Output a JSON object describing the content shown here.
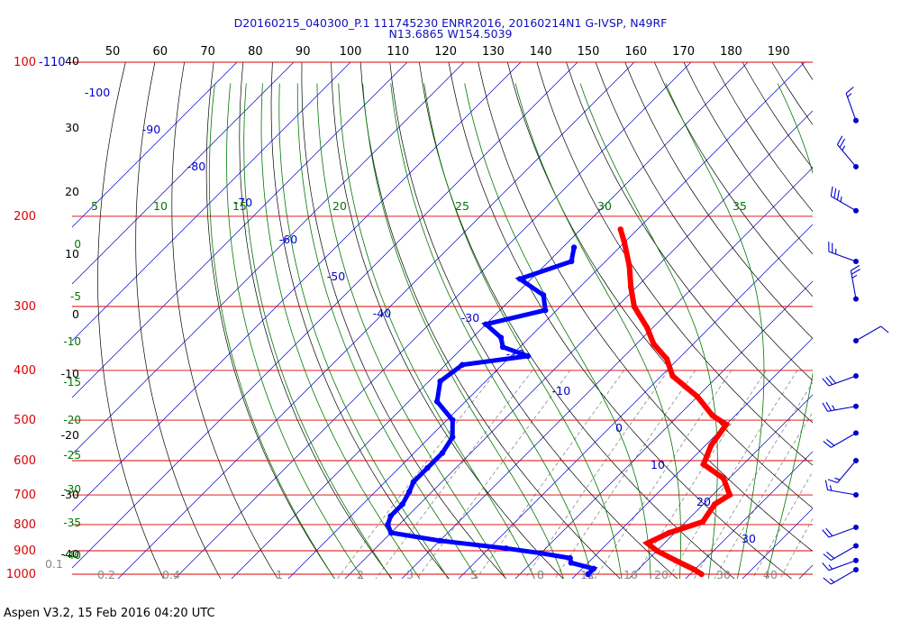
{
  "header": {
    "line1": "D20160215_040300_P.1 111745230 ENRR2016, 20160214N1 G-IVSP, N49RF",
    "line2": "N13.6865 W154.5039"
  },
  "footer": {
    "text": "Aspen V3.2, 15 Feb 2016  04:20 UTC"
  },
  "colors": {
    "isobar": "#dd0000",
    "isotherm": "#0000cc",
    "dry_adiabat": "#000000",
    "moist_adiabat": "#007700",
    "mixing_ratio": "#888888",
    "temperature": "#ff0000",
    "dewpoint": "#0000ff"
  },
  "chart_data": {
    "type": "skew-t",
    "pressure_axis": {
      "ticks": [
        100,
        200,
        300,
        400,
        500,
        600,
        700,
        800,
        900,
        1000
      ],
      "range": [
        100,
        1000
      ],
      "scale": "log"
    },
    "top_theta_labels": [
      50,
      60,
      70,
      80,
      90,
      100,
      110,
      120,
      130,
      140,
      150,
      160,
      170,
      180,
      190
    ],
    "top_left_labels": [
      "-110"
    ],
    "altitude_labels": [
      "40",
      "30",
      "20",
      "10",
      "0",
      "-10",
      "-20",
      "-30",
      "-40"
    ],
    "isotherm_labels": [
      "-100",
      "-90",
      "-80",
      "-70",
      "-60",
      "-50",
      "-40",
      "-30",
      "-20",
      "-10",
      "0",
      "10",
      "20",
      "30"
    ],
    "moist_adiabat_labels": [
      "5",
      "10",
      "15",
      "20",
      "25",
      "30",
      "35"
    ],
    "moist_left_labels": [
      "0",
      "-5",
      "-10",
      "-15",
      "-20",
      "-25",
      "-30",
      "-35",
      "-40"
    ],
    "mixing_ratio_labels": [
      "0.1",
      "0.2",
      "0.4",
      "1",
      "2",
      "3",
      "5",
      "8",
      "12",
      "16",
      "20",
      "30",
      "40"
    ],
    "temperature": {
      "p": [
        212,
        225,
        250,
        275,
        300,
        330,
        355,
        380,
        410,
        450,
        490,
        510,
        560,
        610,
        650,
        700,
        730,
        790,
        830,
        870,
        900,
        940,
        980,
        1000
      ],
      "t": [
        -53,
        -50,
        -45,
        -41,
        -37,
        -31,
        -27,
        -22,
        -18,
        -10,
        -4,
        0,
        1,
        3,
        9,
        13,
        12,
        13,
        9,
        7,
        10,
        15,
        20,
        22
      ]
    },
    "dewpoint": {
      "p": [
        230,
        245,
        265,
        285,
        305,
        325,
        345,
        360,
        375,
        390,
        420,
        460,
        500,
        540,
        580,
        620,
        660,
        690,
        730,
        770,
        800,
        830,
        860,
        890,
        910,
        930,
        950,
        975,
        1000
      ],
      "td": [
        -58,
        -56,
        -62,
        -55,
        -52,
        -60,
        -55,
        -53,
        -47,
        -57,
        -58,
        -55,
        -49,
        -46,
        -45,
        -45,
        -45,
        -44,
        -43,
        -43,
        -42,
        -40,
        -30,
        -17,
        -10,
        -4,
        -3,
        2,
        2
      ]
    },
    "wind_barbs": {
      "p": [
        130,
        160,
        195,
        245,
        290,
        350,
        410,
        470,
        530,
        600,
        700,
        810,
        880,
        940,
        980
      ],
      "direction_deg": [
        340,
        320,
        300,
        290,
        350,
        60,
        250,
        260,
        240,
        220,
        280,
        250,
        240,
        250,
        240
      ],
      "speed_kt": [
        15,
        25,
        35,
        25,
        25,
        10,
        30,
        25,
        20,
        15,
        15,
        20,
        20,
        15,
        15
      ]
    }
  }
}
